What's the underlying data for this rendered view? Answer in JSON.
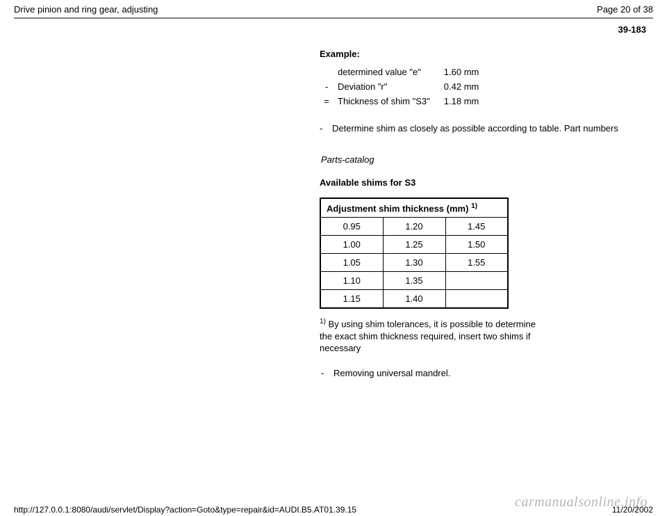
{
  "header": {
    "title": "Drive pinion and ring gear, adjusting",
    "page_number": "Page 20 of 38"
  },
  "section_number": "39-183",
  "example": {
    "label": "Example:",
    "rows": [
      {
        "op": "",
        "label": "determined value \"e\"",
        "value": "1.60 mm"
      },
      {
        "op": "-",
        "label": "Deviation \"r\"",
        "value": "0.42 mm"
      },
      {
        "op": "=",
        "label": "Thickness of shim \"S3\"",
        "value": "1.18 mm"
      }
    ]
  },
  "instruction_1": {
    "bullet": "-",
    "text": "Determine shim as closely as possible according to table. Part numbers"
  },
  "parts_catalog": "  Parts-catalog",
  "shims_heading": "Available shims for S3",
  "shim_table": {
    "header": "Adjustment shim thickness (mm)",
    "header_sup": "1)",
    "rows": [
      [
        "0.95",
        "1.20",
        "1.45"
      ],
      [
        "1.00",
        "1.25",
        "1.50"
      ],
      [
        "1.05",
        "1.30",
        "1.55"
      ],
      [
        "1.10",
        "1.35",
        ""
      ],
      [
        "1.15",
        "1.40",
        ""
      ]
    ]
  },
  "footnote": {
    "sup": "1)",
    "text": " By using shim tolerances, it is possible to determine the exact shim thickness required, insert two shims if necessary"
  },
  "remove_note": {
    "bullet": "-",
    "text": "Removing universal mandrel."
  },
  "footer": {
    "url": "http://127.0.0.1:8080/audi/servlet/Display?action=Goto&type=repair&id=AUDI.B5.AT01.39.15",
    "date": "11/20/2002"
  },
  "watermark": "carmanualsonline.info"
}
